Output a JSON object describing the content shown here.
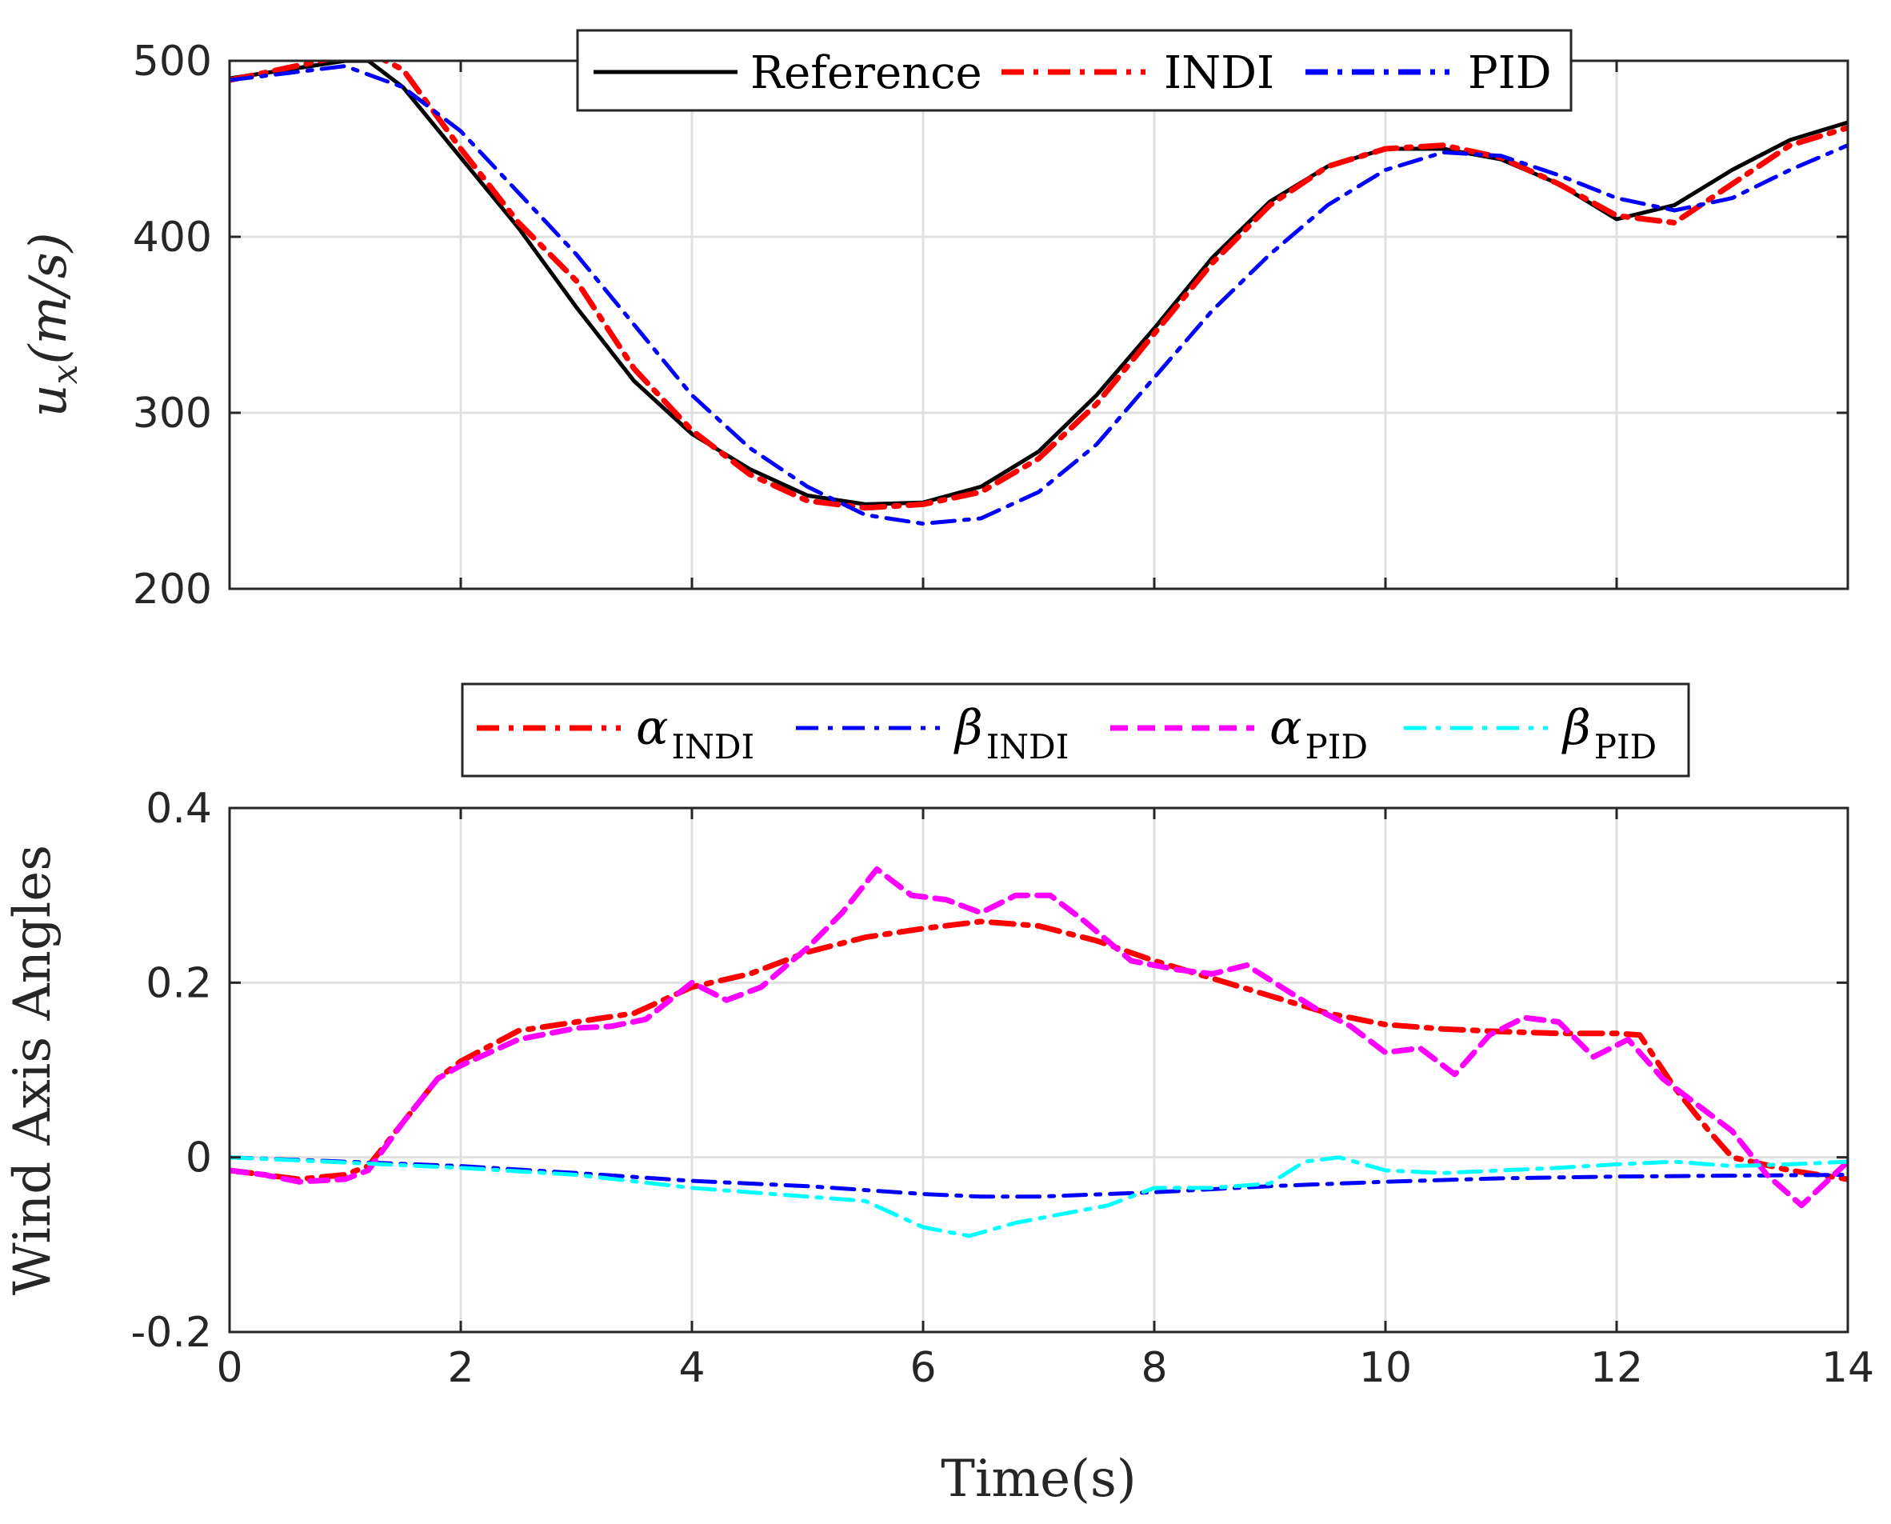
{
  "chart_data": [
    {
      "type": "line",
      "ylabel": "u_x(m/s)",
      "ylabel_main": "u",
      "ylabel_sub": "x",
      "ylabel_rest": "(m/s)",
      "xlim": [
        0,
        14
      ],
      "ylim": [
        200,
        500
      ],
      "xticks": [
        0,
        2,
        4,
        6,
        8,
        10,
        12,
        14
      ],
      "yticks": [
        200,
        300,
        400,
        500
      ],
      "ytick_labels": [
        "200",
        "300",
        "400",
        "500"
      ],
      "grid": true,
      "legend_position": "top",
      "series": [
        {
          "name": "Reference",
          "color": "#000000",
          "style": "solid",
          "x": [
            0,
            0.5,
            1.0,
            1.2,
            1.5,
            2.0,
            2.5,
            3.0,
            3.5,
            4.0,
            4.5,
            5.0,
            5.5,
            6.0,
            6.5,
            7.0,
            7.5,
            8.0,
            8.5,
            9.0,
            9.5,
            10.0,
            10.5,
            11.0,
            11.5,
            12.0,
            12.5,
            13.0,
            13.5,
            14.0
          ],
          "y": [
            490,
            495,
            500,
            500,
            485,
            445,
            405,
            360,
            318,
            288,
            268,
            253,
            248,
            249,
            258,
            278,
            310,
            348,
            388,
            420,
            440,
            450,
            450,
            444,
            430,
            410,
            418,
            438,
            455,
            465
          ]
        },
        {
          "name": "INDI",
          "color": "#ff0000",
          "style": "dashdot",
          "x": [
            0,
            0.5,
            1.0,
            1.2,
            1.5,
            2.0,
            2.5,
            3.0,
            3.5,
            4.0,
            4.5,
            5.0,
            5.5,
            6.0,
            6.5,
            7.0,
            7.5,
            8.0,
            8.5,
            9.0,
            9.5,
            10.0,
            10.5,
            11.0,
            11.5,
            12.0,
            12.5,
            13.0,
            13.5,
            14.0
          ],
          "y": [
            489,
            496,
            503,
            505,
            495,
            450,
            408,
            375,
            325,
            290,
            265,
            250,
            246,
            248,
            255,
            274,
            305,
            345,
            385,
            418,
            440,
            450,
            452,
            445,
            430,
            412,
            408,
            430,
            452,
            462
          ]
        },
        {
          "name": "PID",
          "color": "#0000ff",
          "style": "dashdot",
          "x": [
            0,
            0.5,
            1.0,
            1.5,
            2.0,
            2.5,
            3.0,
            3.5,
            4.0,
            4.5,
            5.0,
            5.5,
            6.0,
            6.5,
            7.0,
            7.5,
            8.0,
            8.5,
            9.0,
            9.5,
            10.0,
            10.5,
            11.0,
            11.5,
            12.0,
            12.5,
            13.0,
            13.5,
            14.0
          ],
          "y": [
            489,
            493,
            497,
            485,
            460,
            425,
            390,
            350,
            310,
            280,
            258,
            242,
            237,
            240,
            255,
            282,
            320,
            358,
            390,
            418,
            438,
            448,
            446,
            435,
            422,
            415,
            422,
            438,
            452
          ]
        }
      ]
    },
    {
      "type": "line",
      "ylabel": "Wind Axis Angles",
      "xlabel": "Time(s)",
      "xlim": [
        0,
        14
      ],
      "ylim": [
        -0.2,
        0.4
      ],
      "xticks": [
        0,
        2,
        4,
        6,
        8,
        10,
        12,
        14
      ],
      "xtick_labels": [
        "0",
        "2",
        "4",
        "6",
        "8",
        "10",
        "12",
        "14"
      ],
      "yticks": [
        -0.2,
        0,
        0.2,
        0.4
      ],
      "ytick_labels": [
        "-0.2",
        "0",
        "0.2",
        "0.4"
      ],
      "grid": true,
      "legend_position": "top",
      "series": [
        {
          "name": "α_INDI",
          "symbol": "α",
          "sub": "INDI",
          "color": "#ff0000",
          "style": "dashdot",
          "x": [
            0,
            0.3,
            0.6,
            1.0,
            1.2,
            1.5,
            1.8,
            2.0,
            2.5,
            3.0,
            3.5,
            4.0,
            4.5,
            5.0,
            5.5,
            6.0,
            6.5,
            7.0,
            7.5,
            8.0,
            8.5,
            9.0,
            9.5,
            10.0,
            10.5,
            11.0,
            11.5,
            12.0,
            12.2,
            12.5,
            12.8,
            13.0,
            13.5,
            14.0
          ],
          "y": [
            -0.015,
            -0.02,
            -0.025,
            -0.02,
            -0.01,
            0.04,
            0.09,
            0.11,
            0.145,
            0.155,
            0.165,
            0.195,
            0.21,
            0.235,
            0.252,
            0.262,
            0.27,
            0.265,
            0.248,
            0.225,
            0.205,
            0.185,
            0.165,
            0.152,
            0.147,
            0.144,
            0.142,
            0.142,
            0.14,
            0.08,
            0.03,
            0.0,
            -0.015,
            -0.025
          ]
        },
        {
          "name": "β_INDI",
          "symbol": "β",
          "sub": "INDI",
          "color": "#0000ff",
          "style": "dashdot",
          "x": [
            0,
            1,
            2,
            3,
            4,
            5,
            6,
            6.5,
            7,
            8,
            9,
            10,
            11,
            12,
            13,
            14
          ],
          "y": [
            0.0,
            -0.005,
            -0.01,
            -0.018,
            -0.027,
            -0.033,
            -0.042,
            -0.045,
            -0.045,
            -0.04,
            -0.033,
            -0.028,
            -0.024,
            -0.022,
            -0.021,
            -0.02
          ]
        },
        {
          "name": "α_PID",
          "symbol": "α",
          "sub": "PID",
          "color": "#ff00ff",
          "style": "dashed",
          "x": [
            0,
            0.3,
            0.6,
            1.0,
            1.2,
            1.5,
            1.8,
            2.0,
            2.5,
            3.0,
            3.3,
            3.6,
            4.0,
            4.3,
            4.6,
            5.0,
            5.3,
            5.6,
            5.9,
            6.2,
            6.5,
            6.8,
            7.1,
            7.4,
            7.8,
            8.2,
            8.5,
            8.8,
            9.1,
            9.4,
            9.7,
            10.0,
            10.3,
            10.6,
            10.9,
            11.2,
            11.5,
            11.8,
            12.1,
            12.4,
            12.7,
            13.0,
            13.3,
            13.6,
            14.0
          ],
          "y": [
            -0.015,
            -0.02,
            -0.028,
            -0.025,
            -0.015,
            0.04,
            0.09,
            0.105,
            0.135,
            0.148,
            0.15,
            0.158,
            0.2,
            0.18,
            0.195,
            0.24,
            0.28,
            0.33,
            0.3,
            0.295,
            0.28,
            0.3,
            0.3,
            0.27,
            0.225,
            0.215,
            0.21,
            0.22,
            0.195,
            0.17,
            0.15,
            0.12,
            0.125,
            0.095,
            0.14,
            0.16,
            0.155,
            0.115,
            0.135,
            0.09,
            0.06,
            0.03,
            -0.02,
            -0.055,
            -0.005
          ]
        },
        {
          "name": "β_PID",
          "symbol": "β",
          "sub": "PID",
          "color": "#00ffff",
          "style": "dashdot",
          "x": [
            0,
            1,
            2,
            3,
            4,
            5,
            5.5,
            6.0,
            6.4,
            6.8,
            7.2,
            7.6,
            8.0,
            8.5,
            9.0,
            9.3,
            9.6,
            10.0,
            10.5,
            11.0,
            11.5,
            12.0,
            12.5,
            13.0,
            13.5,
            14.0
          ],
          "y": [
            0.0,
            -0.006,
            -0.012,
            -0.02,
            -0.035,
            -0.045,
            -0.05,
            -0.08,
            -0.09,
            -0.075,
            -0.065,
            -0.055,
            -0.035,
            -0.035,
            -0.03,
            -0.005,
            0.0,
            -0.015,
            -0.018,
            -0.015,
            -0.012,
            -0.008,
            -0.005,
            -0.01,
            -0.008,
            -0.005
          ]
        }
      ]
    }
  ]
}
